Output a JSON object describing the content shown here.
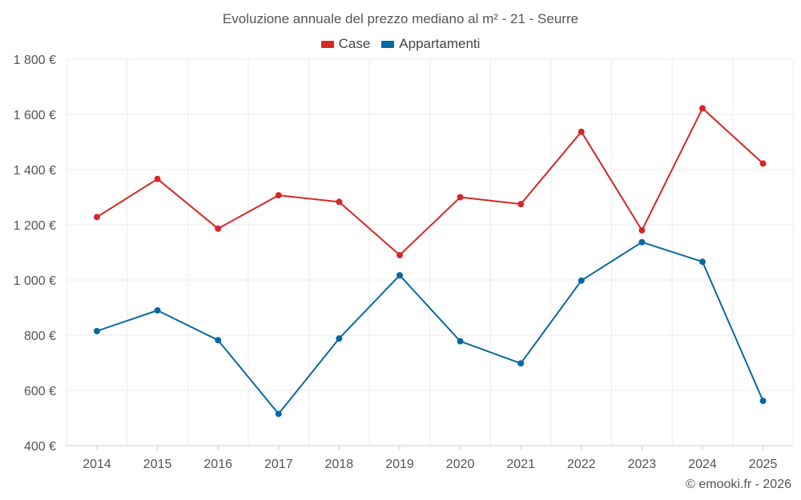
{
  "chart_data": {
    "type": "line",
    "title": "Evoluzione annuale del prezzo mediano al m² - 21 - Seurre",
    "categories": [
      "2014",
      "2015",
      "2016",
      "2017",
      "2018",
      "2019",
      "2020",
      "2021",
      "2022",
      "2023",
      "2024",
      "2025"
    ],
    "series": [
      {
        "name": "Case",
        "color": "#d62728",
        "values": [
          1228,
          1366,
          1186,
          1307,
          1283,
          1090,
          1300,
          1275,
          1537,
          1180,
          1622,
          1422
        ]
      },
      {
        "name": "Appartamenti",
        "color": "#0868a0",
        "values": [
          815,
          890,
          782,
          515,
          788,
          1017,
          778,
          698,
          998,
          1137,
          1066,
          562
        ]
      }
    ],
    "ylim": [
      400,
      1800
    ],
    "yticks": [
      400,
      600,
      800,
      1000,
      1200,
      1400,
      1600,
      1800
    ],
    "ytick_labels": [
      "400 €",
      "600 €",
      "800 €",
      "1 000 €",
      "1 200 €",
      "1 400 €",
      "1 600 €",
      "1 800 €"
    ],
    "grid": true,
    "legend_position": "top-center"
  },
  "credit": "© emooki.fr - 2026"
}
